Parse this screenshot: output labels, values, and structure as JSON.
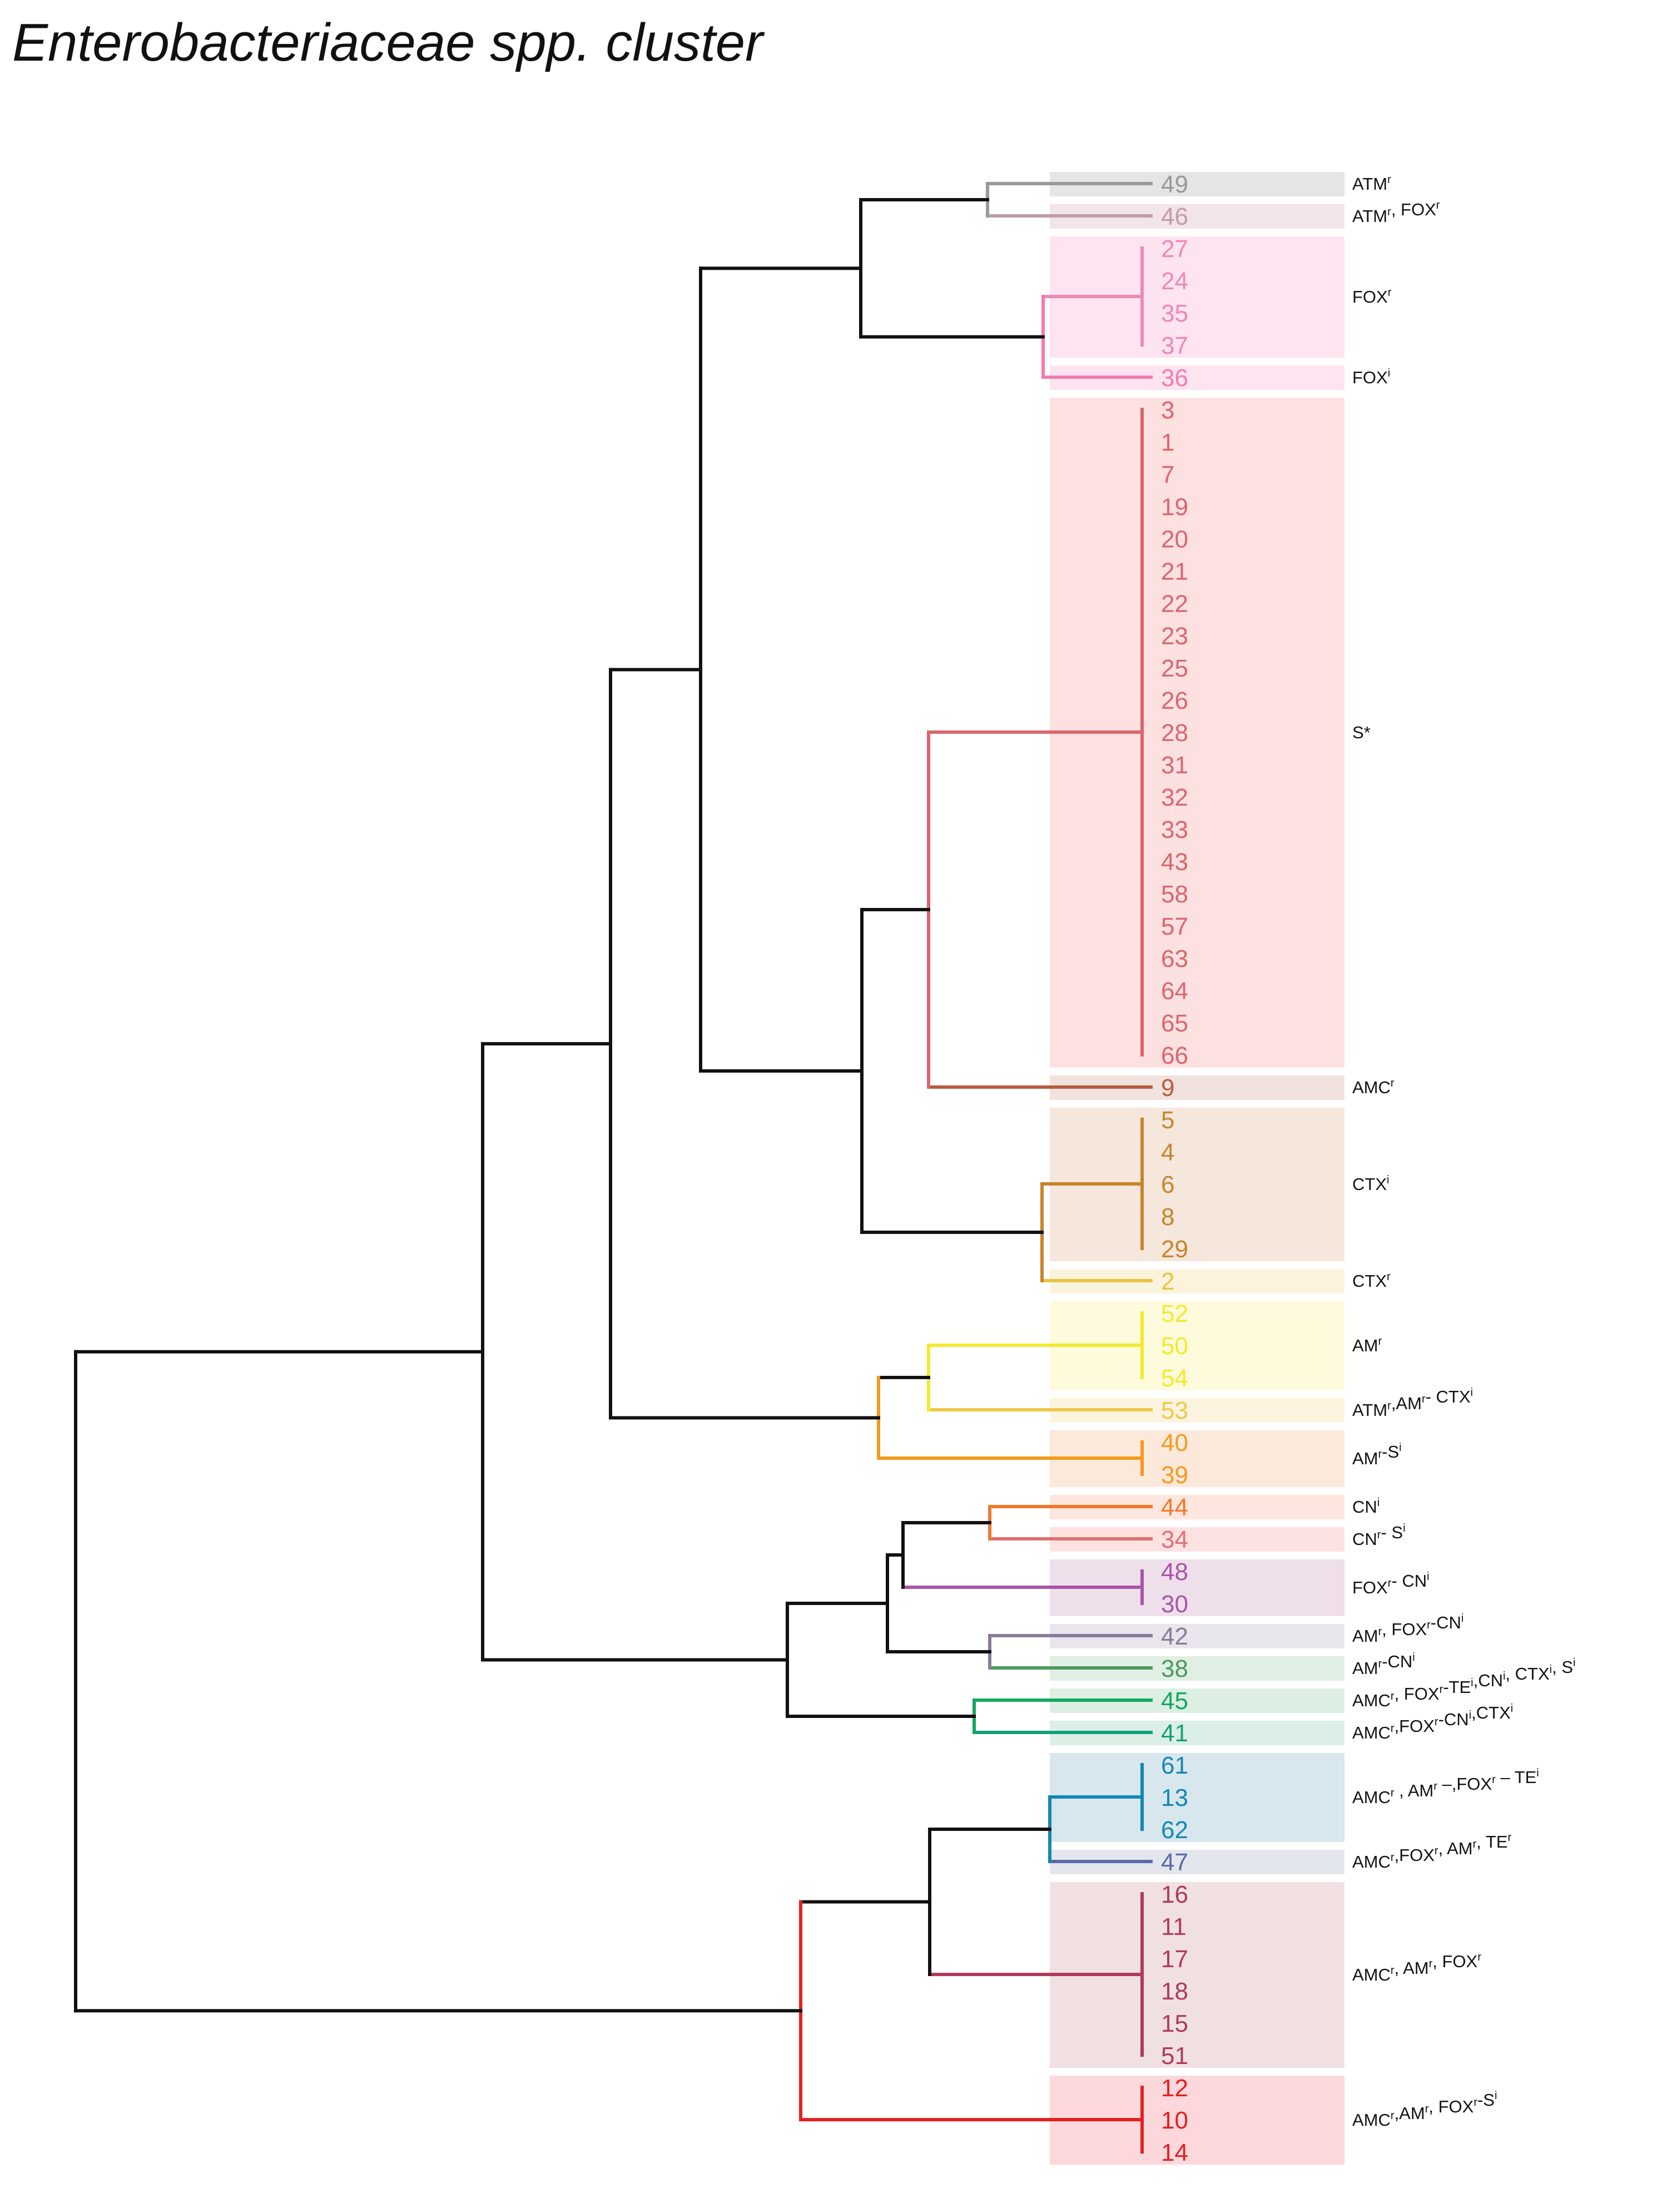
{
  "title": "Enterobacteriaceae spp. cluster",
  "colors": {
    "backbone": "#111111",
    "annotation_text": "#111111"
  },
  "groups": [
    {
      "id": "g49",
      "leaves": [
        "49"
      ],
      "color": "#999999",
      "band": "#e5e5e5"
    },
    {
      "id": "g46",
      "leaves": [
        "46"
      ],
      "color": "#c09cab",
      "band": "#f1e4ea"
    },
    {
      "id": "g27",
      "leaves": [
        "27",
        "24",
        "35",
        "37"
      ],
      "color": "#ee88b8",
      "band": "#fde4f0"
    },
    {
      "id": "g36",
      "leaves": [
        "36"
      ],
      "color": "#f07cae",
      "band": "#fde4f0"
    },
    {
      "id": "g3",
      "leaves": [
        "3",
        "1",
        "7",
        "19",
        "20",
        "21",
        "22",
        "23",
        "25",
        "26",
        "28",
        "31",
        "32",
        "33",
        "43",
        "58",
        "57",
        "63",
        "64",
        "65",
        "66"
      ],
      "color": "#d9666e",
      "band": "#fde0e0"
    },
    {
      "id": "g9",
      "leaves": [
        "9"
      ],
      "color": "#b85a40",
      "band": "#f2e2de"
    },
    {
      "id": "g5",
      "leaves": [
        "5",
        "4",
        "6",
        "8",
        "29"
      ],
      "color": "#c8842a",
      "band": "#f5e7dc"
    },
    {
      "id": "g2",
      "leaves": [
        "2"
      ],
      "color": "#e8c440",
      "band": "#fbf3dc"
    },
    {
      "id": "g52",
      "leaves": [
        "52",
        "50",
        "54"
      ],
      "color": "#f3ea2c",
      "band": "#fefadc"
    },
    {
      "id": "g53",
      "leaves": [
        "53"
      ],
      "color": "#f0c848",
      "band": "#fdf4e0"
    },
    {
      "id": "g40",
      "leaves": [
        "40",
        "39"
      ],
      "color": "#f59a1c",
      "band": "#fce9dc"
    },
    {
      "id": "g44",
      "leaves": [
        "44"
      ],
      "color": "#f07a2c",
      "band": "#fde6dd"
    },
    {
      "id": "g34",
      "leaves": [
        "34"
      ],
      "color": "#e07070",
      "band": "#fde2e2"
    },
    {
      "id": "g48",
      "leaves": [
        "48",
        "30"
      ],
      "color": "#a855a8",
      "band": "#efdfea"
    },
    {
      "id": "g42",
      "leaves": [
        "42"
      ],
      "color": "#8a7a98",
      "band": "#e9e5ec"
    },
    {
      "id": "g38",
      "leaves": [
        "38"
      ],
      "color": "#4a9a5e",
      "band": "#e1eee3"
    },
    {
      "id": "g45",
      "leaves": [
        "45"
      ],
      "color": "#14a860",
      "band": "#dcefe2"
    },
    {
      "id": "g41",
      "leaves": [
        "41"
      ],
      "color": "#14a07a",
      "band": "#dcefe6"
    },
    {
      "id": "g61",
      "leaves": [
        "61",
        "13",
        "62"
      ],
      "color": "#1488b0",
      "band": "#d8e6ee"
    },
    {
      "id": "g47",
      "leaves": [
        "47"
      ],
      "color": "#5a6aa8",
      "band": "#e4e6ee"
    },
    {
      "id": "g16",
      "leaves": [
        "16",
        "11",
        "17",
        "18",
        "15",
        "51"
      ],
      "color": "#b03a5a",
      "band": "#f1e0e2"
    },
    {
      "id": "g12",
      "leaves": [
        "12",
        "10",
        "14"
      ],
      "color": "#e42020",
      "band": "#fcd8dc"
    }
  ],
  "annotations": [
    {
      "group": "g49",
      "parts": [
        [
          "ATM",
          "r"
        ]
      ]
    },
    {
      "group": "g46",
      "parts": [
        [
          "ATM",
          "r"
        ],
        [
          ", FOX",
          "r"
        ]
      ]
    },
    {
      "group": "g27",
      "parts": [
        [
          "FOX",
          "r"
        ]
      ]
    },
    {
      "group": "g36",
      "parts": [
        [
          "FOX",
          "i"
        ]
      ]
    },
    {
      "group": "g3",
      "parts": [
        [
          "S*",
          ""
        ]
      ]
    },
    {
      "group": "g9",
      "parts": [
        [
          "AMC",
          "r"
        ]
      ]
    },
    {
      "group": "g5",
      "parts": [
        [
          "CTX",
          "i"
        ]
      ]
    },
    {
      "group": "g2",
      "parts": [
        [
          "CTX",
          "r"
        ]
      ]
    },
    {
      "group": "g52",
      "parts": [
        [
          "AM",
          "r"
        ]
      ]
    },
    {
      "group": "g53",
      "parts": [
        [
          "ATM",
          "r"
        ],
        [
          ",AM",
          "r"
        ],
        [
          "- CTX",
          "i"
        ]
      ]
    },
    {
      "group": "g40",
      "parts": [
        [
          "AM",
          "r"
        ],
        [
          "-S",
          "i"
        ]
      ]
    },
    {
      "group": "g44",
      "parts": [
        [
          "CN",
          "i"
        ]
      ]
    },
    {
      "group": "g34",
      "parts": [
        [
          "CN",
          "r"
        ],
        [
          "- S",
          "i"
        ]
      ]
    },
    {
      "group": "g48",
      "parts": [
        [
          "FOX",
          "r"
        ],
        [
          "- CN",
          "i"
        ]
      ]
    },
    {
      "group": "g42",
      "parts": [
        [
          "AM",
          "r"
        ],
        [
          ", FOX",
          "r"
        ],
        [
          "-CN",
          "i"
        ]
      ]
    },
    {
      "group": "g38",
      "parts": [
        [
          "AM",
          "r"
        ],
        [
          "-CN",
          "i"
        ]
      ]
    },
    {
      "group": "g45",
      "parts": [
        [
          "AMC",
          "r"
        ],
        [
          ", FOX",
          "r"
        ],
        [
          "-TE",
          "i"
        ],
        [
          ",CN",
          "i"
        ],
        [
          ", CTX",
          "i"
        ],
        [
          ", S",
          "i"
        ]
      ]
    },
    {
      "group": "g41",
      "parts": [
        [
          "AMC",
          "r"
        ],
        [
          ",FOX",
          "r"
        ],
        [
          "-CN",
          "i"
        ],
        [
          ",CTX",
          "i"
        ]
      ]
    },
    {
      "group": "g61",
      "parts": [
        [
          "AMC",
          "r"
        ],
        [
          " , AM",
          "r"
        ],
        [
          " –,FOX",
          "r"
        ],
        [
          " – TE",
          "i"
        ]
      ]
    },
    {
      "group": "g47",
      "parts": [
        [
          "AMC",
          "r"
        ],
        [
          ",FOX",
          "r"
        ],
        [
          ", AM",
          "r"
        ],
        [
          ", TE",
          "r"
        ]
      ]
    },
    {
      "group": "g16",
      "parts": [
        [
          "AMC",
          "r"
        ],
        [
          ", AM",
          "r"
        ],
        [
          ", FOX",
          "r"
        ]
      ]
    },
    {
      "group": "g12",
      "parts": [
        [
          "AMC",
          "r"
        ],
        [
          ",AM",
          "r"
        ],
        [
          ", FOX",
          "r"
        ],
        [
          "-S",
          "i"
        ]
      ]
    }
  ]
}
